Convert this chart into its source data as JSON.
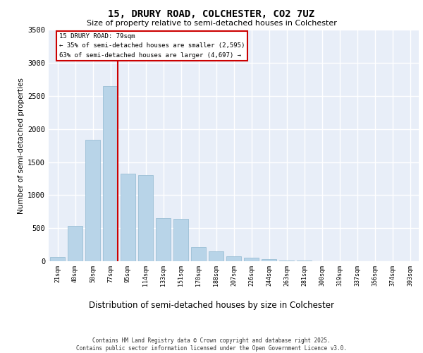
{
  "title_line1": "15, DRURY ROAD, COLCHESTER, CO2 7UZ",
  "title_line2": "Size of property relative to semi-detached houses in Colchester",
  "xlabel": "Distribution of semi-detached houses by size in Colchester",
  "ylabel": "Number of semi-detached properties",
  "categories": [
    "21sqm",
    "40sqm",
    "58sqm",
    "77sqm",
    "95sqm",
    "114sqm",
    "133sqm",
    "151sqm",
    "170sqm",
    "188sqm",
    "207sqm",
    "226sqm",
    "244sqm",
    "263sqm",
    "281sqm",
    "300sqm",
    "319sqm",
    "337sqm",
    "356sqm",
    "374sqm",
    "393sqm"
  ],
  "values": [
    60,
    530,
    1840,
    2650,
    1320,
    1300,
    650,
    640,
    210,
    145,
    75,
    50,
    30,
    15,
    8,
    5,
    3,
    2,
    1,
    1,
    1
  ],
  "bar_color": "#b8d4e8",
  "bar_edge_color": "#90b8d0",
  "vline_pos": 3.42,
  "annotation_title": "15 DRURY ROAD: 79sqm",
  "annotation_line2": "← 35% of semi-detached houses are smaller (2,595)",
  "annotation_line3": "63% of semi-detached houses are larger (4,697) →",
  "ylim_max": 3500,
  "yticks": [
    0,
    500,
    1000,
    1500,
    2000,
    2500,
    3000,
    3500
  ],
  "vline_color": "#cc0000",
  "bg_color": "#e8eef8",
  "footer_line1": "Contains HM Land Registry data © Crown copyright and database right 2025.",
  "footer_line2": "Contains public sector information licensed under the Open Government Licence v3.0."
}
